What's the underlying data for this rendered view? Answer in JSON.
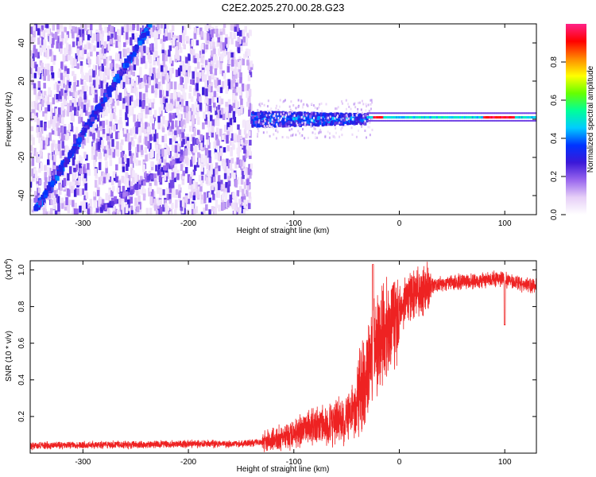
{
  "title": "C2E2.2025.270.00.28.G23",
  "chart_data": [
    {
      "type": "heatmap",
      "xlabel": "Height of straight line (km)",
      "ylabel": "Frequency (Hz)",
      "xlim": [
        -350,
        130
      ],
      "ylim": [
        -50,
        50
      ],
      "xticks": [
        -300,
        -200,
        -100,
        0,
        100
      ],
      "yticks": [
        -40,
        -20,
        0,
        20,
        40
      ],
      "features": [
        {
          "name": "diagonal-trace",
          "from": [
            -345,
            -48
          ],
          "to": [
            -235,
            50
          ]
        },
        {
          "name": "secondary-diagonal",
          "from": [
            -285,
            -48
          ],
          "to": [
            -205,
            -20
          ]
        },
        {
          "name": "noise-region",
          "x_range": [
            -350,
            -140
          ],
          "y_range": [
            -50,
            50
          ]
        },
        {
          "name": "broad-band",
          "x_range": [
            -140,
            -30
          ],
          "y_center": 0,
          "half_width": 4
        },
        {
          "name": "narrow-line",
          "x_range": [
            -30,
            130
          ],
          "y_center": 1
        }
      ],
      "colorbar": {
        "label": "Normalized spectral amplitude",
        "ticks": [
          0.0,
          0.2,
          0.4,
          0.6,
          0.8
        ],
        "range": [
          0,
          1
        ],
        "colormap": [
          "#ffffff",
          "#e6cff7",
          "#9966ee",
          "#3b18d8",
          "#0033ff",
          "#00ccff",
          "#00ff99",
          "#66ff00",
          "#ffff00",
          "#ff8800",
          "#ff0000",
          "#ff2288"
        ]
      }
    },
    {
      "type": "line",
      "xlabel": "Height of straight line (km)",
      "ylabel": "SNR (10 * v/v)",
      "multiplier": "(x10",
      "multiplier_exp": "4",
      "multiplier_close": ")",
      "xlim": [
        -350,
        130
      ],
      "ylim": [
        0,
        1.05
      ],
      "xticks": [
        -300,
        -200,
        -100,
        0,
        100
      ],
      "yticks": [
        0.2,
        0.4,
        0.6,
        0.8,
        1.0
      ],
      "ytick_labels": [
        "0.2",
        "0.4",
        "0.6",
        "0.8",
        "1.0"
      ],
      "line_color": "#ee2222",
      "series": [
        {
          "name": "SNR",
          "points": [
            [
              -350,
              0.04
            ],
            [
              -300,
              0.045
            ],
            [
              -250,
              0.045
            ],
            [
              -200,
              0.05
            ],
            [
              -150,
              0.05
            ],
            [
              -130,
              0.06
            ],
            [
              -110,
              0.09
            ],
            [
              -90,
              0.13
            ],
            [
              -70,
              0.16
            ],
            [
              -55,
              0.18
            ],
            [
              -45,
              0.22
            ],
            [
              -38,
              0.28
            ],
            [
              -32,
              0.36
            ],
            [
              -28,
              0.5
            ],
            [
              -24,
              0.6
            ],
            [
              -20,
              0.62
            ],
            [
              -15,
              0.66
            ],
            [
              -10,
              0.7
            ],
            [
              -5,
              0.72
            ],
            [
              0,
              0.78
            ],
            [
              5,
              0.83
            ],
            [
              15,
              0.87
            ],
            [
              25,
              0.9
            ],
            [
              35,
              0.92
            ],
            [
              50,
              0.93
            ],
            [
              70,
              0.94
            ],
            [
              90,
              0.95
            ],
            [
              100,
              0.95
            ],
            [
              110,
              0.93
            ],
            [
              120,
              0.92
            ],
            [
              130,
              0.91
            ]
          ]
        }
      ],
      "annotations": [
        {
          "x": -25,
          "y": 1.03,
          "kind": "spike"
        },
        {
          "x": 100,
          "y": 0.7,
          "kind": "dip"
        }
      ]
    }
  ]
}
